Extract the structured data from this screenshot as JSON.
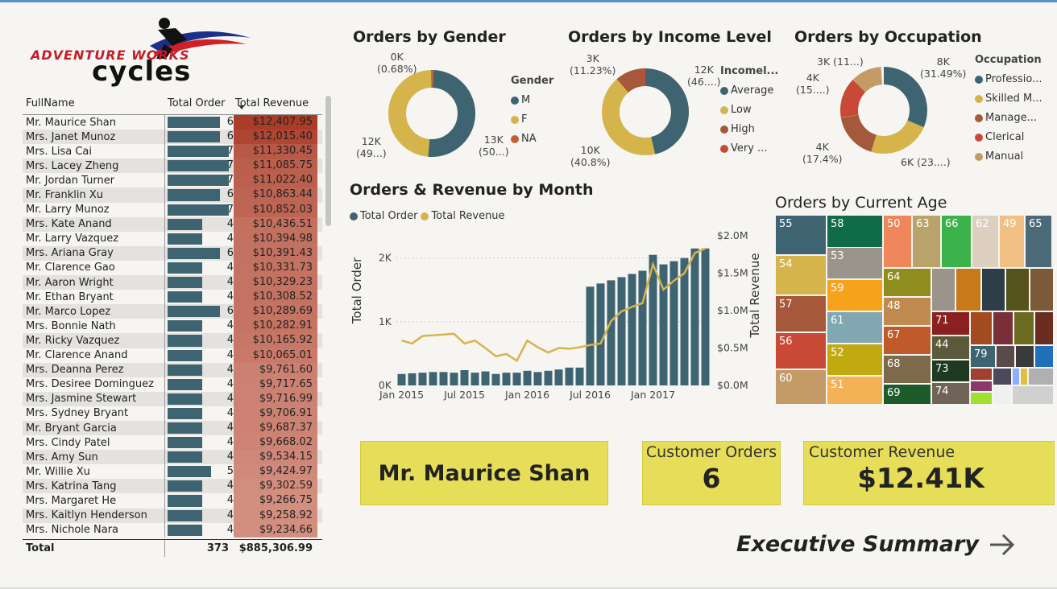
{
  "logo": {
    "line1": "ADVENTURE WORKS",
    "line2": "cycles"
  },
  "table": {
    "headers": [
      "FullName",
      "Total Order",
      "Total Revenue"
    ],
    "rows": [
      {
        "name": "Mr. Maurice Shan",
        "orders": 6,
        "revenue": "$12,407.95"
      },
      {
        "name": "Mrs. Janet Munoz",
        "orders": 6,
        "revenue": "$12,015.40"
      },
      {
        "name": "Mrs. Lisa Cai",
        "orders": 7,
        "revenue": "$11,330.45"
      },
      {
        "name": "Mrs. Lacey Zheng",
        "orders": 7,
        "revenue": "$11,085.75"
      },
      {
        "name": "Mr. Jordan Turner",
        "orders": 7,
        "revenue": "$11,022.40"
      },
      {
        "name": "Mr. Franklin Xu",
        "orders": 6,
        "revenue": "$10,863.44"
      },
      {
        "name": "Mr. Larry Munoz",
        "orders": 7,
        "revenue": "$10,852.03"
      },
      {
        "name": "Mrs. Kate Anand",
        "orders": 4,
        "revenue": "$10,436.51"
      },
      {
        "name": "Mr. Larry Vazquez",
        "orders": 4,
        "revenue": "$10,394.98"
      },
      {
        "name": "Mrs. Ariana Gray",
        "orders": 6,
        "revenue": "$10,391.43"
      },
      {
        "name": "Mr. Clarence Gao",
        "orders": 4,
        "revenue": "$10,331.73"
      },
      {
        "name": "Mr. Aaron Wright",
        "orders": 4,
        "revenue": "$10,329.23"
      },
      {
        "name": "Mr. Ethan Bryant",
        "orders": 4,
        "revenue": "$10,308.52"
      },
      {
        "name": "Mr. Marco Lopez",
        "orders": 6,
        "revenue": "$10,289.69"
      },
      {
        "name": "Mrs. Bonnie Nath",
        "orders": 4,
        "revenue": "$10,282.91"
      },
      {
        "name": "Mr. Ricky Vazquez",
        "orders": 4,
        "revenue": "$10,165.92"
      },
      {
        "name": "Mr. Clarence Anand",
        "orders": 4,
        "revenue": "$10,065.01"
      },
      {
        "name": "Mrs. Deanna Perez",
        "orders": 4,
        "revenue": "$9,761.60"
      },
      {
        "name": "Mrs. Desiree Dominguez",
        "orders": 4,
        "revenue": "$9,717.65"
      },
      {
        "name": "Mrs. Jasmine Stewart",
        "orders": 4,
        "revenue": "$9,716.99"
      },
      {
        "name": "Mrs. Sydney Bryant",
        "orders": 4,
        "revenue": "$9,706.91"
      },
      {
        "name": "Mr. Bryant Garcia",
        "orders": 4,
        "revenue": "$9,687.37"
      },
      {
        "name": "Mrs. Cindy Patel",
        "orders": 4,
        "revenue": "$9,668.02"
      },
      {
        "name": "Mrs. Amy Sun",
        "orders": 4,
        "revenue": "$9,534.15"
      },
      {
        "name": "Mr. Willie Xu",
        "orders": 5,
        "revenue": "$9,424.97"
      },
      {
        "name": "Mrs. Katrina Tang",
        "orders": 4,
        "revenue": "$9,302.59"
      },
      {
        "name": "Mrs. Margaret He",
        "orders": 4,
        "revenue": "$9,266.75"
      },
      {
        "name": "Mrs. Kaitlyn Henderson",
        "orders": 4,
        "revenue": "$9,258.92"
      },
      {
        "name": "Mrs. Nichole Nara",
        "orders": 4,
        "revenue": "$9,234.66"
      }
    ],
    "total": {
      "label": "Total",
      "orders": "373",
      "revenue": "$885,306.99"
    }
  },
  "gender": {
    "title": "Orders by Gender",
    "legend_title": "Gender",
    "legend": [
      {
        "label": "M",
        "color": "#3f6471"
      },
      {
        "label": "F",
        "color": "#d6b44c"
      },
      {
        "label": "NA",
        "color": "#c0603a"
      }
    ],
    "labels": {
      "top1": "0K",
      "top2": "(0.68%)",
      "left1": "12K",
      "left2": "(49...)",
      "right1": "13K",
      "right2": "(50...)"
    }
  },
  "income": {
    "title": "Orders by Income Level",
    "legend_title": "Incomel...",
    "legend": [
      {
        "label": "Average",
        "color": "#3f6471"
      },
      {
        "label": "Low",
        "color": "#d6b44c"
      },
      {
        "label": "High",
        "color": "#a5593a"
      },
      {
        "label": "Very ...",
        "color": "#c84a36"
      }
    ],
    "labels": {
      "tl1": "3K",
      "tl2": "(11.23%)",
      "tr1": "12K",
      "tr2": "(46....)",
      "bl1": "10K",
      "bl2": "(40.8%)"
    }
  },
  "occupation": {
    "title": "Orders by Occupation",
    "legend_title": "Occupation",
    "legend": [
      {
        "label": "Professio...",
        "color": "#3f6471"
      },
      {
        "label": "Skilled M...",
        "color": "#d6b44c"
      },
      {
        "label": "Manage...",
        "color": "#a5593a"
      },
      {
        "label": "Clerical",
        "color": "#c84a36"
      },
      {
        "label": "Manual",
        "color": "#c49b66"
      }
    ],
    "labels": {
      "t1": "3K (11...)",
      "tr1": "8K",
      "tr2": "(31.49%)",
      "l1": "4K",
      "l2": "(15....)",
      "bl1": "4K",
      "bl2": "(17.4%)",
      "br1": "6K (23....)"
    }
  },
  "monthly": {
    "title": "Orders & Revenue by Month",
    "legend": [
      {
        "label": "Total Order",
        "color": "#3f6471"
      },
      {
        "label": "Total Revenue",
        "color": "#d6b44c"
      }
    ],
    "y_left_label": "Total Order",
    "y_right_label": "Total Revenue",
    "y_left_ticks": [
      "0K",
      "1K",
      "2K"
    ],
    "y_right_ticks": [
      "$0.0M",
      "$0.5M",
      "$1.0M",
      "$1.5M",
      "$2.0M"
    ],
    "x_ticks": [
      "Jan 2015",
      "Jul 2015",
      "Jan 2016",
      "Jul 2016",
      "Jan 2017"
    ]
  },
  "chart_data": {
    "type": "bar",
    "title": "Orders & Revenue by Month",
    "xlabel": "",
    "ylabel": "Total Order",
    "y2label": "Total Revenue",
    "ylim": [
      0,
      2400
    ],
    "y2lim": [
      0,
      2000000
    ],
    "categories": [
      "Jan 2015",
      "Feb 2015",
      "Mar 2015",
      "Apr 2015",
      "May 2015",
      "Jun 2015",
      "Jul 2015",
      "Aug 2015",
      "Sep 2015",
      "Oct 2015",
      "Nov 2015",
      "Dec 2015",
      "Jan 2016",
      "Feb 2016",
      "Mar 2016",
      "Apr 2016",
      "May 2016",
      "Jun 2016",
      "Jul 2016",
      "Aug 2016",
      "Sep 2016",
      "Oct 2016",
      "Nov 2016",
      "Dec 2016",
      "Jan 2017",
      "Feb 2017",
      "Mar 2017",
      "Apr 2017",
      "May 2017",
      "Jun 2017"
    ],
    "series": [
      {
        "name": "Total Order",
        "type": "bar",
        "values": [
          180,
          190,
          200,
          210,
          210,
          200,
          240,
          200,
          220,
          180,
          200,
          200,
          230,
          210,
          230,
          250,
          280,
          280,
          1550,
          1600,
          1650,
          1700,
          1750,
          1800,
          2050,
          1900,
          1950,
          2000,
          2150,
          2150
        ]
      },
      {
        "name": "Total Revenue",
        "type": "line",
        "axis": "right",
        "values": [
          600000,
          560000,
          660000,
          670000,
          680000,
          690000,
          560000,
          600000,
          500000,
          390000,
          420000,
          330000,
          600000,
          510000,
          440000,
          500000,
          490000,
          510000,
          540000,
          560000,
          860000,
          990000,
          1050000,
          1100000,
          1620000,
          1280000,
          1400000,
          1500000,
          1770000,
          1830000
        ]
      }
    ]
  },
  "age": {
    "title": "Orders by Current Age",
    "cells": [
      {
        "label": "55",
        "color": "#3f6471"
      },
      {
        "label": "58",
        "color": "#0f6b4a"
      },
      {
        "label": "50",
        "color": "#f0865c"
      },
      {
        "label": "63",
        "color": "#b8a46b"
      },
      {
        "label": "66",
        "color": "#3cb34a"
      },
      {
        "label": "62",
        "color": "#ddd0c0"
      },
      {
        "label": "49",
        "color": "#f2c083"
      },
      {
        "label": "65",
        "color": "#4a6a78"
      },
      {
        "label": "54",
        "color": "#d6b44c"
      },
      {
        "label": "53",
        "color": "#9b948a"
      },
      {
        "label": "57",
        "color": "#a5593a"
      },
      {
        "label": "59",
        "color": "#f7a21b"
      },
      {
        "label": "64",
        "color": "#8e8d1e"
      },
      {
        "label": "61",
        "color": "#80a7b2"
      },
      {
        "label": "48",
        "color": "#c08a4e"
      },
      {
        "label": "56",
        "color": "#c84a36"
      },
      {
        "label": "67",
        "color": "#c05a2b"
      },
      {
        "label": "71",
        "color": "#8b2020"
      },
      {
        "label": "52",
        "color": "#c0aa10"
      },
      {
        "label": "44",
        "color": "#5b5b3c"
      },
      {
        "label": "68",
        "color": "#7d6a4a"
      },
      {
        "label": "73",
        "color": "#1e3a20"
      },
      {
        "label": "60",
        "color": "#c49b66"
      },
      {
        "label": "51",
        "color": "#f5b155"
      },
      {
        "label": "69",
        "color": "#1e5b2a"
      },
      {
        "label": "74",
        "color": "#6f6457"
      },
      {
        "label": "79",
        "color": "#3f6471"
      }
    ]
  },
  "selected": {
    "name": "Mr. Maurice Shan",
    "orders_label": "Customer Orders",
    "orders_value": "6",
    "revenue_label": "Customer Revenue",
    "revenue_value": "$12.41K"
  },
  "nav": {
    "label": "Executive Summary"
  }
}
